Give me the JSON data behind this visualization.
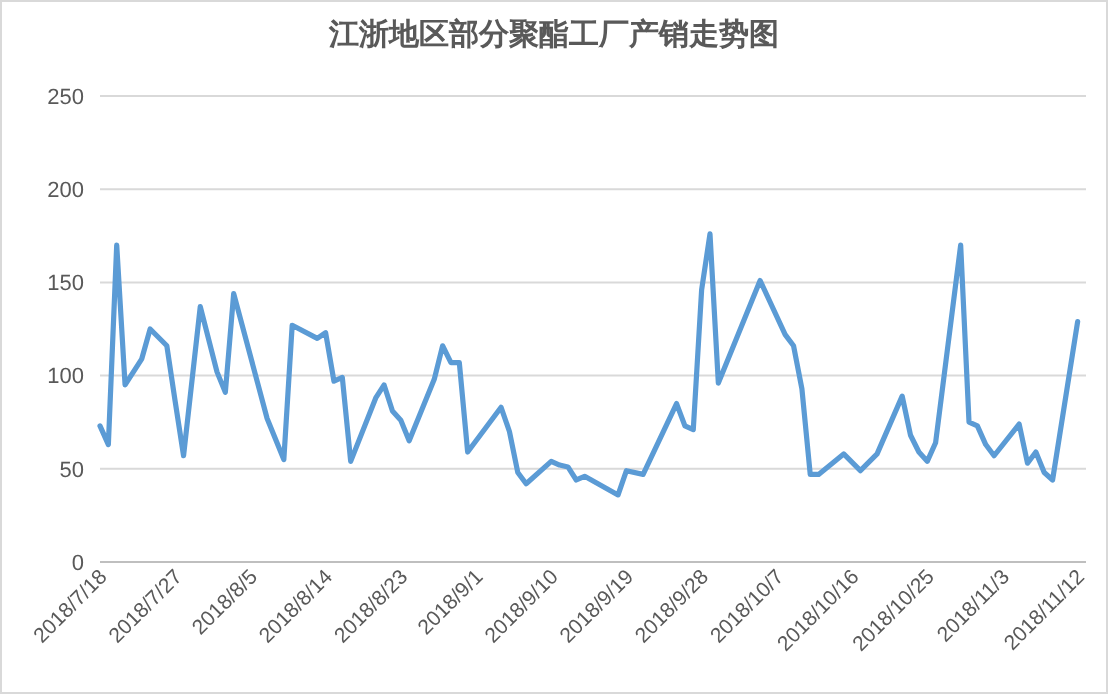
{
  "chart_data": {
    "type": "line",
    "title": "江浙地区部分聚酯工厂产销走势图",
    "x": [
      "2018-07-18",
      "2018-07-19",
      "2018-07-20",
      "2018-07-21",
      "2018-07-23",
      "2018-07-24",
      "2018-07-26",
      "2018-07-27",
      "2018-07-28",
      "2018-07-30",
      "2018-08-01",
      "2018-08-02",
      "2018-08-03",
      "2018-08-07",
      "2018-08-09",
      "2018-08-10",
      "2018-08-13",
      "2018-08-14",
      "2018-08-15",
      "2018-08-16",
      "2018-08-17",
      "2018-08-20",
      "2018-08-21",
      "2018-08-22",
      "2018-08-23",
      "2018-08-24",
      "2018-08-27",
      "2018-08-28",
      "2018-08-29",
      "2018-08-30",
      "2018-08-31",
      "2018-09-04",
      "2018-09-05",
      "2018-09-06",
      "2018-09-07",
      "2018-09-10",
      "2018-09-11",
      "2018-09-12",
      "2018-09-13",
      "2018-09-14",
      "2018-09-18",
      "2018-09-19",
      "2018-09-21",
      "2018-09-25",
      "2018-09-26",
      "2018-09-27",
      "2018-09-28",
      "2018-09-29",
      "2018-09-30",
      "2018-10-05",
      "2018-10-08",
      "2018-10-09",
      "2018-10-10",
      "2018-10-11",
      "2018-10-12",
      "2018-10-15",
      "2018-10-17",
      "2018-10-19",
      "2018-10-22",
      "2018-10-23",
      "2018-10-24",
      "2018-10-25",
      "2018-10-26",
      "2018-10-29",
      "2018-10-30",
      "2018-10-31",
      "2018-11-01",
      "2018-11-02",
      "2018-11-05",
      "2018-11-06",
      "2018-11-07",
      "2018-11-08",
      "2018-11-09",
      "2018-11-12"
    ],
    "series": [
      {
        "color": "#5b9bd5",
        "values": [
          73,
          63,
          170,
          95,
          109,
          125,
          116,
          86,
          57,
          137,
          102,
          91,
          144,
          77,
          55,
          127,
          120,
          123,
          97,
          99,
          54,
          88,
          95,
          81,
          76,
          65,
          98,
          116,
          107,
          107,
          59,
          83,
          70,
          48,
          42,
          54,
          52,
          51,
          44,
          46,
          36,
          49,
          47,
          85,
          73,
          71,
          146,
          176,
          96,
          151,
          122,
          116,
          93,
          47,
          47,
          58,
          49,
          58,
          89,
          68,
          59,
          54,
          64,
          170,
          75,
          73,
          63,
          57,
          74,
          53,
          59,
          48,
          44,
          129
        ]
      }
    ],
    "xlim": [
      "2018-07-18",
      "2018-11-13"
    ],
    "xticks": [
      {
        "value": "2018-07-18",
        "label": "2018/7/18"
      },
      {
        "value": "2018-07-27",
        "label": "2018/7/27"
      },
      {
        "value": "2018-08-05",
        "label": "2018/8/5"
      },
      {
        "value": "2018-08-14",
        "label": "2018/8/14"
      },
      {
        "value": "2018-08-23",
        "label": "2018/8/23"
      },
      {
        "value": "2018-09-01",
        "label": "2018/9/1"
      },
      {
        "value": "2018-09-10",
        "label": "2018/9/10"
      },
      {
        "value": "2018-09-19",
        "label": "2018/9/19"
      },
      {
        "value": "2018-09-28",
        "label": "2018/9/28"
      },
      {
        "value": "2018-10-07",
        "label": "2018/10/7"
      },
      {
        "value": "2018-10-16",
        "label": "2018/10/16"
      },
      {
        "value": "2018-10-25",
        "label": "2018/10/25"
      },
      {
        "value": "2018-11-03",
        "label": "2018/11/3"
      },
      {
        "value": "2018-11-12",
        "label": "2018/11/12"
      }
    ],
    "ylim": [
      0,
      250
    ],
    "yticks": [
      0,
      50,
      100,
      150,
      200,
      250
    ],
    "grid": "y",
    "marker": "none",
    "line_style": "solid"
  }
}
